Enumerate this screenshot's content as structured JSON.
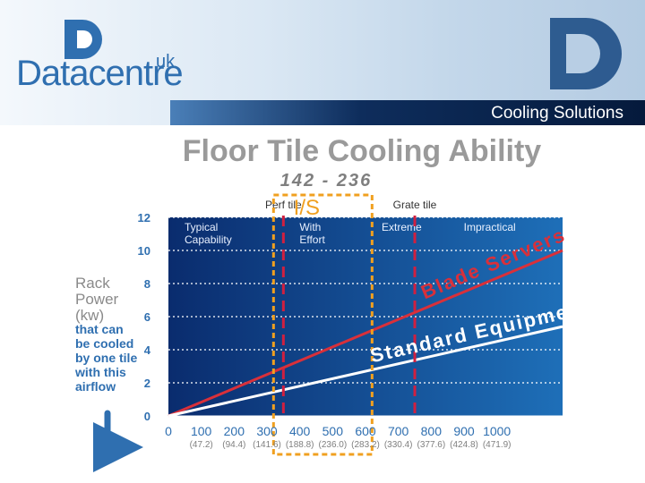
{
  "header": {
    "brand": "Datacentre",
    "brand_suffix": "uk",
    "banner": "Cooling Solutions"
  },
  "colors": {
    "brand_blue": "#2f6fb0",
    "plot_dark": "#0a2c6e",
    "plot_light": "#1e6fb8",
    "blade_line": "#d9303a",
    "standard_line": "#ffffff",
    "is_box": "#f0a020",
    "marker_line": "#d02040",
    "title_gray": "#9a9a9a"
  },
  "chart_data": {
    "type": "line",
    "title": "Floor Tile Cooling Ability",
    "range_label": "142 - 236",
    "is_label": "I/S",
    "ylabel_lines": [
      "Rack",
      "Power",
      "(kw)"
    ],
    "ylabel_note_lines": [
      "that can",
      "be cooled",
      "by one tile",
      "with this",
      "airflow"
    ],
    "x_ticks": [
      0,
      100,
      200,
      300,
      400,
      500,
      600,
      700,
      800,
      900,
      1000
    ],
    "x_ticks_secondary": [
      "(47.2)",
      "(94.4)",
      "(141.6)",
      "(188.8)",
      "(236.0)",
      "(283.2)",
      "(330.4)",
      "(377.6)",
      "(424.8)",
      "(471.9)"
    ],
    "y_ticks": [
      0,
      2,
      4,
      6,
      8,
      10,
      12
    ],
    "xlim": [
      0,
      1200
    ],
    "ylim": [
      0,
      12
    ],
    "grid": true,
    "series": [
      {
        "x": [
          0,
          1200
        ],
        "y": [
          0,
          10.0
        ]
      },
      {
        "x": [
          0,
          1200
        ],
        "y": [
          0,
          5.4
        ]
      }
    ],
    "line_labels": [
      "Blade Servers",
      "Standard Equipment"
    ],
    "markers": [
      {
        "label": "Perf tile",
        "x": 350
      },
      {
        "label": "Grate tile",
        "x": 750
      }
    ],
    "highlight_range": [
      320,
      620
    ],
    "regions": [
      {
        "label_lines": [
          "Typical",
          "Capability"
        ],
        "x_start": 0,
        "x_end": 300
      },
      {
        "label_lines": [
          "With",
          "Effort"
        ],
        "x_start": 350,
        "x_end": 600
      },
      {
        "label_lines": [
          "Extreme"
        ],
        "x_start": 600,
        "x_end": 850
      },
      {
        "label_lines": [
          "Impractical"
        ],
        "x_start": 850,
        "x_end": 1200
      }
    ]
  }
}
